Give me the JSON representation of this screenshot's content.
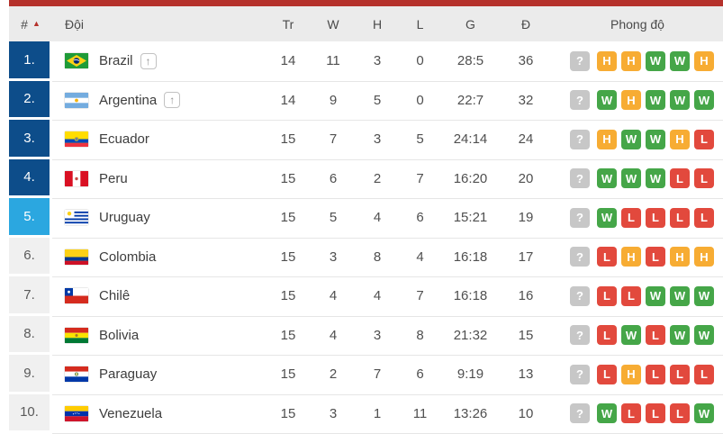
{
  "table": {
    "colors": {
      "top_bar": "#b5312b",
      "header_bg": "#ebebeb",
      "highlight": {
        "navy": "#0d4d8a",
        "lightblue": "#2ba7e0",
        "gray": "#f0f0f0"
      },
      "form": {
        "W": "#45a648",
        "L": "#e2493d",
        "H": "#f7ac33",
        "?": "#c7c7c7"
      }
    },
    "header": {
      "rank": "#",
      "sort_arrow": "▲",
      "team": "Đội",
      "played": "Tr",
      "wins": "W",
      "draws": "H",
      "losses": "L",
      "goals": "G",
      "points": "Đ",
      "form": "Phong độ"
    },
    "promoted_icon": "↑",
    "rows": [
      {
        "rank": "1.",
        "highlight": "navy",
        "flag": "brazil",
        "team": "Brazil",
        "promoted": true,
        "played": "14",
        "wins": "11",
        "draws": "3",
        "losses": "0",
        "goals": "28:5",
        "points": "36",
        "form": [
          "?",
          "H",
          "H",
          "W",
          "W",
          "H"
        ]
      },
      {
        "rank": "2.",
        "highlight": "navy",
        "flag": "argentina",
        "team": "Argentina",
        "promoted": true,
        "played": "14",
        "wins": "9",
        "draws": "5",
        "losses": "0",
        "goals": "22:7",
        "points": "32",
        "form": [
          "?",
          "W",
          "H",
          "W",
          "W",
          "W"
        ]
      },
      {
        "rank": "3.",
        "highlight": "navy",
        "flag": "ecuador",
        "team": "Ecuador",
        "promoted": false,
        "played": "15",
        "wins": "7",
        "draws": "3",
        "losses": "5",
        "goals": "24:14",
        "points": "24",
        "form": [
          "?",
          "H",
          "W",
          "W",
          "H",
          "L"
        ]
      },
      {
        "rank": "4.",
        "highlight": "navy",
        "flag": "peru",
        "team": "Peru",
        "promoted": false,
        "played": "15",
        "wins": "6",
        "draws": "2",
        "losses": "7",
        "goals": "16:20",
        "points": "20",
        "form": [
          "?",
          "W",
          "W",
          "W",
          "L",
          "L"
        ]
      },
      {
        "rank": "5.",
        "highlight": "lightblue",
        "flag": "uruguay",
        "team": "Uruguay",
        "promoted": false,
        "played": "15",
        "wins": "5",
        "draws": "4",
        "losses": "6",
        "goals": "15:21",
        "points": "19",
        "form": [
          "?",
          "W",
          "L",
          "L",
          "L",
          "L"
        ]
      },
      {
        "rank": "6.",
        "highlight": "gray",
        "flag": "colombia",
        "team": "Colombia",
        "promoted": false,
        "played": "15",
        "wins": "3",
        "draws": "8",
        "losses": "4",
        "goals": "16:18",
        "points": "17",
        "form": [
          "?",
          "L",
          "H",
          "L",
          "H",
          "H"
        ]
      },
      {
        "rank": "7.",
        "highlight": "gray",
        "flag": "chile",
        "team": "Chilê",
        "promoted": false,
        "played": "15",
        "wins": "4",
        "draws": "4",
        "losses": "7",
        "goals": "16:18",
        "points": "16",
        "form": [
          "?",
          "L",
          "L",
          "W",
          "W",
          "W"
        ]
      },
      {
        "rank": "8.",
        "highlight": "gray",
        "flag": "bolivia",
        "team": "Bolivia",
        "promoted": false,
        "played": "15",
        "wins": "4",
        "draws": "3",
        "losses": "8",
        "goals": "21:32",
        "points": "15",
        "form": [
          "?",
          "L",
          "W",
          "L",
          "W",
          "W"
        ]
      },
      {
        "rank": "9.",
        "highlight": "gray",
        "flag": "paraguay",
        "team": "Paraguay",
        "promoted": false,
        "played": "15",
        "wins": "2",
        "draws": "7",
        "losses": "6",
        "goals": "9:19",
        "points": "13",
        "form": [
          "?",
          "L",
          "H",
          "L",
          "L",
          "L"
        ]
      },
      {
        "rank": "10.",
        "highlight": "gray",
        "flag": "venezuela",
        "team": "Venezuela",
        "promoted": false,
        "played": "15",
        "wins": "3",
        "draws": "1",
        "losses": "11",
        "goals": "13:26",
        "points": "10",
        "form": [
          "?",
          "W",
          "L",
          "L",
          "L",
          "W"
        ]
      }
    ]
  }
}
